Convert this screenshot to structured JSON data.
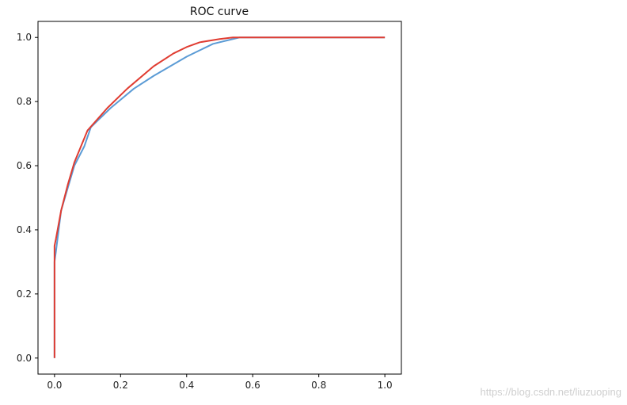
{
  "chart_data": {
    "type": "line",
    "title": "ROC curve",
    "xlabel": "",
    "ylabel": "",
    "xlim": [
      -0.05,
      1.05
    ],
    "ylim": [
      -0.05,
      1.05
    ],
    "xticks": [
      0.0,
      0.2,
      0.4,
      0.6,
      0.8,
      1.0
    ],
    "yticks": [
      0.0,
      0.2,
      0.4,
      0.6,
      0.8,
      1.0
    ],
    "xtick_labels": [
      "0.0",
      "0.2",
      "0.4",
      "0.6",
      "0.8",
      "1.0"
    ],
    "ytick_labels": [
      "0.0",
      "0.2",
      "0.4",
      "0.6",
      "0.8",
      "1.0"
    ],
    "grid": false,
    "series": [
      {
        "color": "#5b9bd5",
        "x": [
          0.0,
          0.0,
          0.004,
          0.02,
          0.04,
          0.06,
          0.09,
          0.11,
          0.17,
          0.24,
          0.3,
          0.35,
          0.4,
          0.44,
          0.48,
          0.52,
          0.56,
          0.58,
          0.7,
          0.8,
          0.9,
          1.0
        ],
        "y": [
          0.0,
          0.3,
          0.33,
          0.46,
          0.53,
          0.6,
          0.66,
          0.72,
          0.78,
          0.84,
          0.88,
          0.91,
          0.94,
          0.96,
          0.98,
          0.99,
          1.0,
          1.0,
          1.0,
          1.0,
          1.0,
          1.0
        ]
      },
      {
        "color": "#e03c31",
        "x": [
          0.0,
          0.0,
          0.004,
          0.02,
          0.04,
          0.06,
          0.1,
          0.16,
          0.22,
          0.3,
          0.36,
          0.4,
          0.44,
          0.5,
          0.54,
          0.58,
          0.7,
          0.8,
          0.9,
          1.0
        ],
        "y": [
          0.0,
          0.35,
          0.37,
          0.46,
          0.54,
          0.61,
          0.71,
          0.78,
          0.84,
          0.91,
          0.95,
          0.97,
          0.985,
          0.995,
          1.0,
          1.0,
          1.0,
          1.0,
          1.0,
          1.0
        ]
      }
    ]
  },
  "watermark": "https://blog.csdn.net/liuzuoping"
}
